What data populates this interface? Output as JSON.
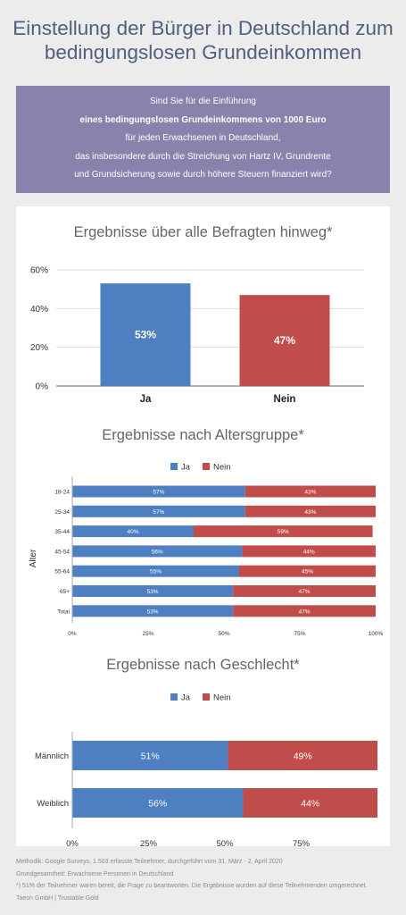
{
  "page": {
    "title_line1": "Einstellung der Bürger in Deutschland zum",
    "title_line2": "bedingungslosen Grundeinkommen"
  },
  "question": {
    "line1": "Sind Sie für die Einführung",
    "line2": "eines bedingungslosen Grundeinkommens von 1000 Euro",
    "line3": "für jeden Erwachsenen in Deutschland,",
    "line4": "das insbesondere durch die Streichung von Hartz IV, Grundrente",
    "line5": "und Grundsicherung sowie durch höhere Steuern finanziert wird?"
  },
  "colors": {
    "ja": "#4e7fc1",
    "nein": "#c14d4b",
    "axis": "#999999",
    "grid": "#dddddd",
    "text": "#333333"
  },
  "chart_data": [
    {
      "type": "bar",
      "title": "Ergebnisse über alle Befragten hinweg*",
      "categories": [
        "Ja",
        "Nein"
      ],
      "values": [
        53,
        47
      ],
      "value_labels": [
        "53%",
        "47%"
      ],
      "yticks": [
        "0%",
        "20%",
        "40%",
        "60%"
      ],
      "ylim": [
        0,
        60
      ],
      "grid": true
    },
    {
      "type": "bar",
      "orientation": "horizontal-stacked",
      "title": "Ergebnisse nach Altersgruppe*",
      "ylabel": "Alter",
      "legend": [
        "Ja",
        "Nein"
      ],
      "legend_position": "top",
      "categories": [
        "18-24",
        "25-34",
        "35-44",
        "45-54",
        "55-64",
        "65+",
        "Total"
      ],
      "series": [
        {
          "name": "Ja",
          "values": [
            57,
            57,
            40,
            56,
            55,
            53,
            53
          ],
          "labels": [
            "57%",
            "57%",
            "40%",
            "56%",
            "55%",
            "53%",
            "53%"
          ]
        },
        {
          "name": "Nein",
          "values": [
            43,
            43,
            59,
            44,
            45,
            47,
            47
          ],
          "labels": [
            "43%",
            "43%",
            "59%",
            "44%",
            "45%",
            "47%",
            "47%"
          ]
        }
      ],
      "xticks": [
        "0%",
        "25%",
        "50%",
        "75%",
        "100%"
      ],
      "xlim": [
        0,
        100
      ]
    },
    {
      "type": "bar",
      "orientation": "horizontal-stacked",
      "title": "Ergebnisse nach Geschlecht*",
      "legend": [
        "Ja",
        "Nein"
      ],
      "legend_position": "top",
      "categories": [
        "Männlich",
        "Weiblich"
      ],
      "series": [
        {
          "name": "Ja",
          "values": [
            51,
            56
          ],
          "labels": [
            "51%",
            "56%"
          ]
        },
        {
          "name": "Nein",
          "values": [
            49,
            44
          ],
          "labels": [
            "49%",
            "44%"
          ]
        }
      ],
      "xticks": [
        "0%",
        "25%",
        "50%",
        "75%"
      ],
      "xlim": [
        0,
        100
      ]
    }
  ],
  "footer": {
    "line1": "Methodik: Google Surveys, 1.503 erfasste Teilnehmer, durchgeführt vom 31. März - 2. April 2020",
    "line2": "Grundgesamtheit: Erwachsene Personen in Deutschland",
    "line3": "*) 51% der Teilnehmer waren bereit, die Frage zu beantworten. Die Ergebnisse wurden auf diese Teilnehmenden umgerechnet.",
    "line4": "Taeon GmbH | Trustable Gold"
  }
}
